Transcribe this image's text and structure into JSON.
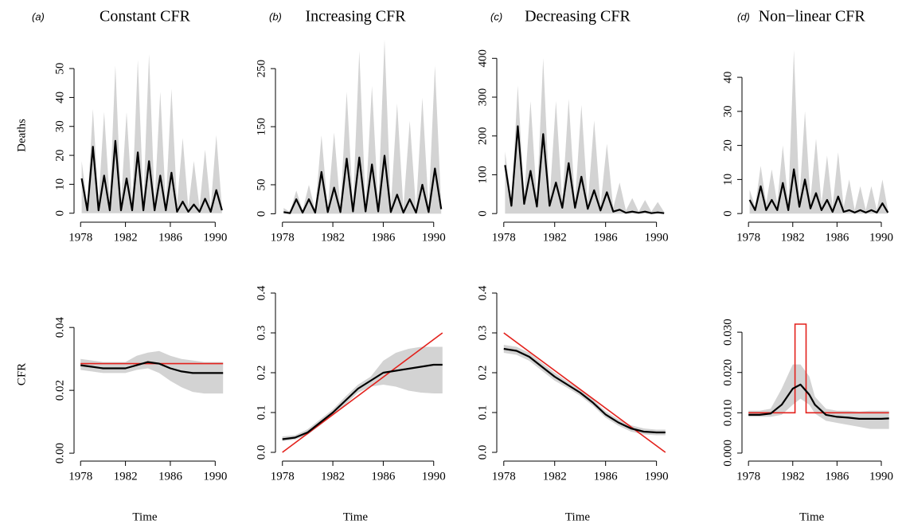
{
  "chart_data": [
    {
      "type": "line",
      "panel_label": "(a)",
      "title": "Constant CFR",
      "ylabel": "Deaths",
      "x": [
        1978.1,
        1978.6,
        1979.1,
        1979.6,
        1980.1,
        1980.6,
        1981.1,
        1981.6,
        1982.1,
        1982.6,
        1983.1,
        1983.6,
        1984.1,
        1984.6,
        1985.1,
        1985.6,
        1986.1,
        1986.6,
        1987.1,
        1987.6,
        1988.1,
        1988.6,
        1989.1,
        1989.6,
        1990.1,
        1990.6
      ],
      "values": [
        12,
        1,
        23,
        1,
        13,
        1,
        25,
        1,
        12,
        1,
        21,
        1,
        18,
        1,
        13,
        1,
        14,
        0.5,
        4,
        0.5,
        3,
        0.5,
        5,
        0.5,
        8,
        1
      ],
      "band_upper": [
        18,
        3,
        36,
        4,
        35,
        4,
        51,
        4,
        35,
        4,
        53,
        4,
        55,
        4,
        42,
        3,
        43,
        3,
        26,
        2,
        18,
        2,
        22,
        2,
        27,
        2
      ],
      "band_lower": [
        0,
        0,
        0,
        0,
        0,
        0,
        0,
        0,
        0,
        0,
        0,
        0,
        0,
        0,
        0,
        0,
        0,
        0,
        0,
        0,
        0,
        0,
        0,
        0,
        0,
        0
      ],
      "color": "#000000",
      "band_color": "#d3d3d3",
      "xlim": [
        1977.7,
        1990.9
      ],
      "xticks": [
        1978,
        1982,
        1986,
        1990
      ],
      "ylim": [
        -2,
        55.8
      ],
      "yticks": [
        0,
        10,
        20,
        30,
        40,
        50
      ]
    },
    {
      "type": "line",
      "panel_label": "(b)",
      "title": "Increasing CFR",
      "x": [
        1978.1,
        1978.6,
        1979.1,
        1979.6,
        1980.1,
        1980.6,
        1981.1,
        1981.6,
        1982.1,
        1982.6,
        1983.1,
        1983.6,
        1984.1,
        1984.6,
        1985.1,
        1985.6,
        1986.1,
        1986.6,
        1987.1,
        1987.6,
        1988.1,
        1988.6,
        1989.1,
        1989.6,
        1990.1,
        1990.6
      ],
      "values": [
        3,
        1,
        25,
        2,
        25,
        2,
        72,
        3,
        45,
        3,
        95,
        4,
        97,
        4,
        85,
        4,
        100,
        3,
        33,
        2,
        25,
        2,
        50,
        3,
        78,
        8
      ],
      "band_upper": [
        10,
        3,
        40,
        6,
        50,
        6,
        135,
        10,
        140,
        10,
        210,
        15,
        280,
        15,
        220,
        15,
        300,
        12,
        190,
        10,
        160,
        8,
        200,
        10,
        255,
        15
      ],
      "band_lower": [
        0,
        0,
        0,
        0,
        0,
        0,
        0,
        0,
        0,
        0,
        0,
        0,
        0,
        0,
        0,
        0,
        0,
        0,
        0,
        0,
        0,
        0,
        0,
        0,
        0,
        0
      ],
      "color": "#000000",
      "band_color": "#d3d3d3",
      "xlim": [
        1977.7,
        1990.9
      ],
      "xticks": [
        1978,
        1982,
        1986,
        1990
      ],
      "ylim": [
        -9,
        279
      ],
      "yticks": [
        0,
        50,
        150,
        250
      ]
    },
    {
      "type": "line",
      "panel_label": "(c)",
      "title": "Decreasing CFR",
      "x": [
        1978.1,
        1978.6,
        1979.1,
        1979.6,
        1980.1,
        1980.6,
        1981.1,
        1981.6,
        1982.1,
        1982.6,
        1983.1,
        1983.6,
        1984.1,
        1984.6,
        1985.1,
        1985.6,
        1986.1,
        1986.6,
        1987.1,
        1987.6,
        1988.1,
        1988.6,
        1989.1,
        1989.6,
        1990.1,
        1990.6
      ],
      "values": [
        125,
        20,
        225,
        25,
        110,
        18,
        205,
        20,
        80,
        15,
        130,
        15,
        95,
        12,
        60,
        8,
        55,
        5,
        10,
        2,
        5,
        2,
        5,
        1,
        3,
        1
      ],
      "band_upper": [
        160,
        30,
        330,
        40,
        290,
        35,
        400,
        35,
        290,
        30,
        295,
        30,
        280,
        25,
        240,
        20,
        180,
        15,
        80,
        8,
        40,
        5,
        35,
        5,
        30,
        4
      ],
      "band_lower": [
        0,
        0,
        0,
        0,
        0,
        0,
        0,
        0,
        0,
        0,
        0,
        0,
        0,
        0,
        0,
        0,
        0,
        0,
        0,
        0,
        0,
        0,
        0,
        0,
        0,
        0
      ],
      "color": "#000000",
      "band_color": "#d3d3d3",
      "xlim": [
        1977.7,
        1990.9
      ],
      "xticks": [
        1978,
        1982,
        1986,
        1990
      ],
      "ylim": [
        -14,
        417
      ],
      "yticks": [
        0,
        100,
        200,
        300,
        400
      ]
    },
    {
      "type": "line",
      "panel_label": "(d)",
      "title": "Non−linear CFR",
      "x": [
        1978.1,
        1978.6,
        1979.1,
        1979.6,
        1980.1,
        1980.6,
        1981.1,
        1981.6,
        1982.1,
        1982.6,
        1983.1,
        1983.6,
        1984.1,
        1984.6,
        1985.1,
        1985.6,
        1986.1,
        1986.6,
        1987.1,
        1987.6,
        1988.1,
        1988.6,
        1989.1,
        1989.6,
        1990.1,
        1990.6
      ],
      "values": [
        4,
        1,
        8,
        1,
        4,
        1,
        9,
        1,
        13,
        2,
        10,
        1.5,
        6,
        1,
        4,
        0.5,
        5,
        0.5,
        1,
        0.3,
        1,
        0.3,
        1,
        0.3,
        3,
        0.3
      ],
      "band_upper": [
        7,
        2,
        14,
        3,
        13,
        3,
        20,
        3,
        48,
        4,
        30,
        4,
        22,
        3,
        17,
        2,
        18,
        2,
        10,
        1,
        8,
        1,
        8,
        1,
        10,
        1
      ],
      "band_lower": [
        0,
        0,
        0,
        0,
        0,
        0,
        0,
        0,
        0,
        0,
        0,
        0,
        0,
        0,
        0,
        0,
        0,
        0,
        0,
        0,
        0,
        0,
        0,
        0,
        0,
        0
      ],
      "color": "#000000",
      "band_color": "#d3d3d3",
      "xlim": [
        1977.7,
        1990.9
      ],
      "xticks": [
        1978,
        1982,
        1986,
        1990
      ],
      "ylim": [
        -1.6,
        47.5
      ],
      "yticks": [
        0,
        10,
        20,
        30,
        40
      ]
    },
    {
      "type": "line",
      "xlabel": "Time",
      "ylabel": "CFR",
      "x": [
        1978,
        1979,
        1980,
        1981,
        1982,
        1983,
        1984,
        1985,
        1986,
        1987,
        1988,
        1989,
        1990,
        1990.7
      ],
      "values": [
        0.028,
        0.0275,
        0.027,
        0.027,
        0.027,
        0.028,
        0.029,
        0.0285,
        0.027,
        0.026,
        0.0255,
        0.0255,
        0.0255,
        0.0255
      ],
      "band_upper": [
        0.03,
        0.0295,
        0.029,
        0.029,
        0.029,
        0.031,
        0.032,
        0.0325,
        0.031,
        0.03,
        0.0295,
        0.029,
        0.029,
        0.029
      ],
      "band_lower": [
        0.0265,
        0.026,
        0.0255,
        0.0255,
        0.0255,
        0.0265,
        0.027,
        0.0255,
        0.023,
        0.021,
        0.0195,
        0.019,
        0.019,
        0.019
      ],
      "color": "#000000",
      "band_color": "#d3d3d3",
      "reference": {
        "x": [
          1978,
          1990.7
        ],
        "values": [
          0.0285,
          0.0285
        ],
        "color": "#e3211c"
      },
      "xlim": [
        1977.7,
        1990.9
      ],
      "xticks": [
        1978,
        1982,
        1986,
        1990
      ],
      "ylim": [
        -0.0015,
        0.0517
      ],
      "yticks": [
        {
          "value": 0,
          "label": "0.00"
        },
        {
          "value": 0.02,
          "label": "0.02"
        },
        {
          "value": 0.04,
          "label": "0.04"
        }
      ]
    },
    {
      "type": "line",
      "xlabel": "Time",
      "x": [
        1978,
        1979,
        1980,
        1981,
        1982,
        1983,
        1984,
        1985,
        1986,
        1987,
        1988,
        1989,
        1990,
        1990.7
      ],
      "values": [
        0.033,
        0.037,
        0.05,
        0.075,
        0.1,
        0.13,
        0.16,
        0.18,
        0.2,
        0.205,
        0.21,
        0.215,
        0.22,
        0.22
      ],
      "band_upper": [
        0.04,
        0.043,
        0.058,
        0.083,
        0.108,
        0.14,
        0.17,
        0.19,
        0.23,
        0.25,
        0.26,
        0.265,
        0.265,
        0.265
      ],
      "band_lower": [
        0.028,
        0.032,
        0.044,
        0.068,
        0.093,
        0.12,
        0.15,
        0.165,
        0.17,
        0.165,
        0.155,
        0.15,
        0.148,
        0.148
      ],
      "color": "#000000",
      "band_color": "#d3d3d3",
      "reference": {
        "x": [
          1978,
          1990.7
        ],
        "values": [
          0,
          0.3
        ],
        "color": "#e3211c"
      },
      "xlim": [
        1977.7,
        1990.9
      ],
      "xticks": [
        1978,
        1982,
        1986,
        1990
      ],
      "ylim": [
        -0.014,
        0.406
      ],
      "yticks": [
        {
          "value": 0,
          "label": "0.0"
        },
        0.1,
        0.2,
        0.3,
        0.4
      ]
    },
    {
      "type": "line",
      "xlabel": "Time",
      "x": [
        1978,
        1979,
        1980,
        1981,
        1982,
        1983,
        1984,
        1985,
        1986,
        1987,
        1988,
        1989,
        1990,
        1990.7
      ],
      "values": [
        0.26,
        0.255,
        0.24,
        0.215,
        0.19,
        0.17,
        0.15,
        0.125,
        0.095,
        0.075,
        0.06,
        0.052,
        0.05,
        0.05
      ],
      "band_upper": [
        0.27,
        0.265,
        0.25,
        0.225,
        0.2,
        0.178,
        0.158,
        0.133,
        0.103,
        0.083,
        0.068,
        0.06,
        0.057,
        0.057
      ],
      "band_lower": [
        0.25,
        0.245,
        0.23,
        0.205,
        0.18,
        0.162,
        0.142,
        0.117,
        0.087,
        0.067,
        0.052,
        0.045,
        0.043,
        0.043
      ],
      "color": "#000000",
      "band_color": "#d3d3d3",
      "reference": {
        "x": [
          1978,
          1990.7
        ],
        "values": [
          0.3,
          0
        ],
        "color": "#e3211c"
      },
      "xlim": [
        1977.7,
        1990.9
      ],
      "xticks": [
        1978,
        1982,
        1986,
        1990
      ],
      "ylim": [
        -0.014,
        0.406
      ],
      "yticks": [
        {
          "value": 0,
          "label": "0.0"
        },
        0.1,
        0.2,
        0.3,
        0.4
      ]
    },
    {
      "type": "line",
      "xlabel": "Time",
      "x": [
        1978,
        1979,
        1980,
        1981,
        1982,
        1982.7,
        1983.5,
        1984,
        1985,
        1986,
        1987,
        1988,
        1989,
        1990,
        1990.7
      ],
      "values": [
        0.0095,
        0.0095,
        0.0098,
        0.012,
        0.016,
        0.017,
        0.0145,
        0.012,
        0.0095,
        0.009,
        0.0088,
        0.0085,
        0.0085,
        0.0085,
        0.0086
      ],
      "band_upper": [
        0.0105,
        0.0105,
        0.011,
        0.016,
        0.022,
        0.022,
        0.019,
        0.014,
        0.011,
        0.0105,
        0.0105,
        0.0103,
        0.0105,
        0.0105,
        0.0105
      ],
      "band_lower": [
        0.009,
        0.009,
        0.009,
        0.0095,
        0.012,
        0.0135,
        0.012,
        0.0098,
        0.008,
        0.0075,
        0.007,
        0.0065,
        0.006,
        0.006,
        0.006
      ],
      "color": "#000000",
      "band_color": "#d3d3d3",
      "reference": {
        "x": [
          1978,
          1982.2,
          1982.2,
          1983.2,
          1983.2,
          1990.7
        ],
        "values": [
          0.01,
          0.01,
          0.032,
          0.032,
          0.01,
          0.01
        ],
        "color": "#e3211c"
      },
      "xlim": [
        1977.7,
        1990.9
      ],
      "xticks": [
        1978,
        1982,
        1986,
        1990
      ],
      "ylim": [
        -0.0012,
        0.0403
      ],
      "yticks": [
        {
          "value": 0,
          "label": "0.000"
        },
        {
          "value": 0.01,
          "label": "0.010"
        },
        {
          "value": 0.02,
          "label": "0.020"
        },
        {
          "value": 0.03,
          "label": "0.030"
        }
      ]
    }
  ]
}
